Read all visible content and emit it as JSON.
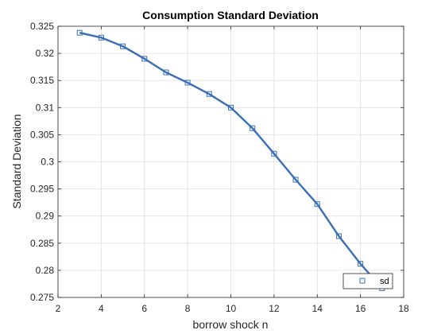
{
  "chart_data": {
    "type": "line",
    "title": "Consumption Standard Deviation",
    "xlabel": "borrow shock n",
    "ylabel": "Standard Deviation",
    "xlim": [
      2,
      18
    ],
    "ylim": [
      0.275,
      0.325
    ],
    "x_ticks": [
      2,
      4,
      6,
      8,
      10,
      12,
      14,
      16,
      18
    ],
    "x_tick_labels": [
      "2",
      "4",
      "6",
      "8",
      "10",
      "12",
      "14",
      "16",
      "18"
    ],
    "y_ticks": [
      0.275,
      0.28,
      0.285,
      0.29,
      0.295,
      0.3,
      0.305,
      0.31,
      0.315,
      0.32,
      0.325
    ],
    "y_tick_labels": [
      "0.275",
      "0.28",
      "0.285",
      "0.29",
      "0.295",
      "0.3",
      "0.305",
      "0.31",
      "0.315",
      "0.32",
      "0.325"
    ],
    "grid": true,
    "legend": {
      "entries": [
        "sd"
      ],
      "placement": "bottom-right"
    },
    "line_color": "#3a6fb6",
    "marker": "square",
    "series": [
      {
        "name": "sd",
        "x": [
          3,
          4,
          5,
          6,
          7,
          8,
          9,
          10,
          11,
          12,
          13,
          14,
          15,
          16,
          17
        ],
        "y": [
          0.3238,
          0.3229,
          0.3213,
          0.319,
          0.3165,
          0.3146,
          0.3125,
          0.31,
          0.3062,
          0.3015,
          0.2967,
          0.2922,
          0.2863,
          0.2812,
          0.2767
        ]
      }
    ]
  }
}
